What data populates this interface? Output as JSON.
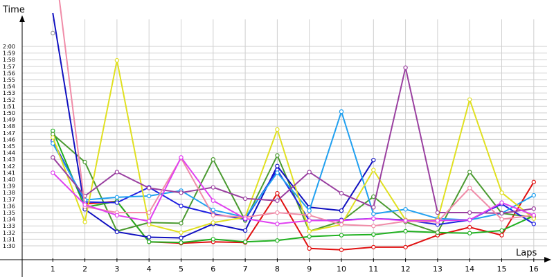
{
  "chart_data": {
    "type": "line",
    "title": "",
    "xlabel": "Laps",
    "ylabel": "Time",
    "x": [
      1,
      2,
      3,
      4,
      5,
      6,
      7,
      8,
      9,
      10,
      11,
      12,
      13,
      14,
      15,
      16
    ],
    "xlim": [
      0,
      16
    ],
    "y_unit": "seconds",
    "ylim": [
      87,
      126
    ],
    "y_ticks": [
      90,
      91,
      92,
      93,
      94,
      95,
      96,
      97,
      98,
      99,
      100,
      101,
      102,
      103,
      104,
      105,
      106,
      107,
      108,
      109,
      110,
      111,
      112,
      113,
      114,
      115,
      116,
      117,
      118,
      119,
      120
    ],
    "y_tick_labels": [
      "1:30",
      "1:31",
      "1:32",
      "1:33",
      "1:34",
      "1:35",
      "1:36",
      "1:37",
      "1:38",
      "1:39",
      "1:40",
      "1:41",
      "1:42",
      "1:43",
      "1:44",
      "1:45",
      "1:46",
      "1:47",
      "1:48",
      "1:49",
      "1:50",
      "1:51",
      "1:52",
      "1:53",
      "1:54",
      "1:55",
      "1:56",
      "1:57",
      "1:58",
      "1:59",
      "2:00"
    ],
    "grid": true,
    "legend": "none",
    "series": [
      {
        "color": "#e01010",
        "values": [
          null,
          96.3,
          96.7,
          90.6,
          90.4,
          90.6,
          90.5,
          97.9,
          89.6,
          89.4,
          89.8,
          89.8,
          91.6,
          92.8,
          91.6,
          99.6
        ]
      },
      {
        "color": "#20b020",
        "values": [
          107.3,
          95.8,
          96.7,
          90.6,
          90.5,
          91.0,
          90.6,
          90.8,
          91.4,
          91.6,
          91.7,
          92.2,
          92.0,
          91.9,
          92.3,
          94.5
        ]
      },
      {
        "color": "#4a9a30",
        "values": [
          106.8,
          102.6,
          92.2,
          93.5,
          93.4,
          103.0,
          93.8,
          103.6,
          92.2,
          93.7,
          97.4,
          93.6,
          92.0,
          101.1,
          94.9,
          94.3
        ]
      },
      {
        "color": "#1010c0",
        "values": [
          125.0,
          95.5,
          92.1,
          91.3,
          91.2,
          93.3,
          92.3,
          102.0,
          95.8,
          95.3,
          102.9,
          null,
          null,
          null,
          null,
          null
        ]
      },
      {
        "color": "#2020e0",
        "values": [
          105.8,
          96.6,
          96.5,
          98.8,
          96.0,
          94.8,
          94.0,
          101.4,
          93.8,
          93.9,
          94.1,
          93.9,
          93.2,
          93.9,
          96.3,
          93.3
        ]
      },
      {
        "color": "#20a0f0",
        "values": [
          105.4,
          96.9,
          97.3,
          97.5,
          98.3,
          95.4,
          94.3,
          101.0,
          95.3,
          110.2,
          94.8,
          95.5,
          94.1,
          93.9,
          94.9,
          97.6
        ]
      },
      {
        "color": "#e0e020",
        "values": [
          106.3,
          93.6,
          117.9,
          93.2,
          92.0,
          93.5,
          94.3,
          107.5,
          92.2,
          93.2,
          101.4,
          93.9,
          93.9,
          112.0,
          98.0,
          94.1
        ]
      },
      {
        "color": "#9a40a0",
        "values": [
          103.3,
          97.5,
          101.1,
          98.7,
          98.0,
          98.8,
          97.1,
          96.8,
          101.1,
          97.9,
          95.8,
          116.8,
          95.0,
          95.0,
          94.9,
          95.6
        ]
      },
      {
        "color": "#f08ca8",
        "values": null
      },
      {
        "color": "#e040f0",
        "values": [
          101.0,
          96.2,
          94.6,
          93.7,
          103.3,
          96.8,
          94.1,
          93.3,
          93.8,
          93.8,
          94.1,
          93.8,
          93.8,
          93.9,
          96.5,
          94.6
        ]
      },
      {
        "color": "#a0a0a0",
        "values": [
          122.0,
          null,
          null,
          null,
          null,
          null,
          null,
          null,
          null,
          null,
          null,
          null,
          null,
          null,
          null,
          null
        ]
      }
    ]
  }
}
